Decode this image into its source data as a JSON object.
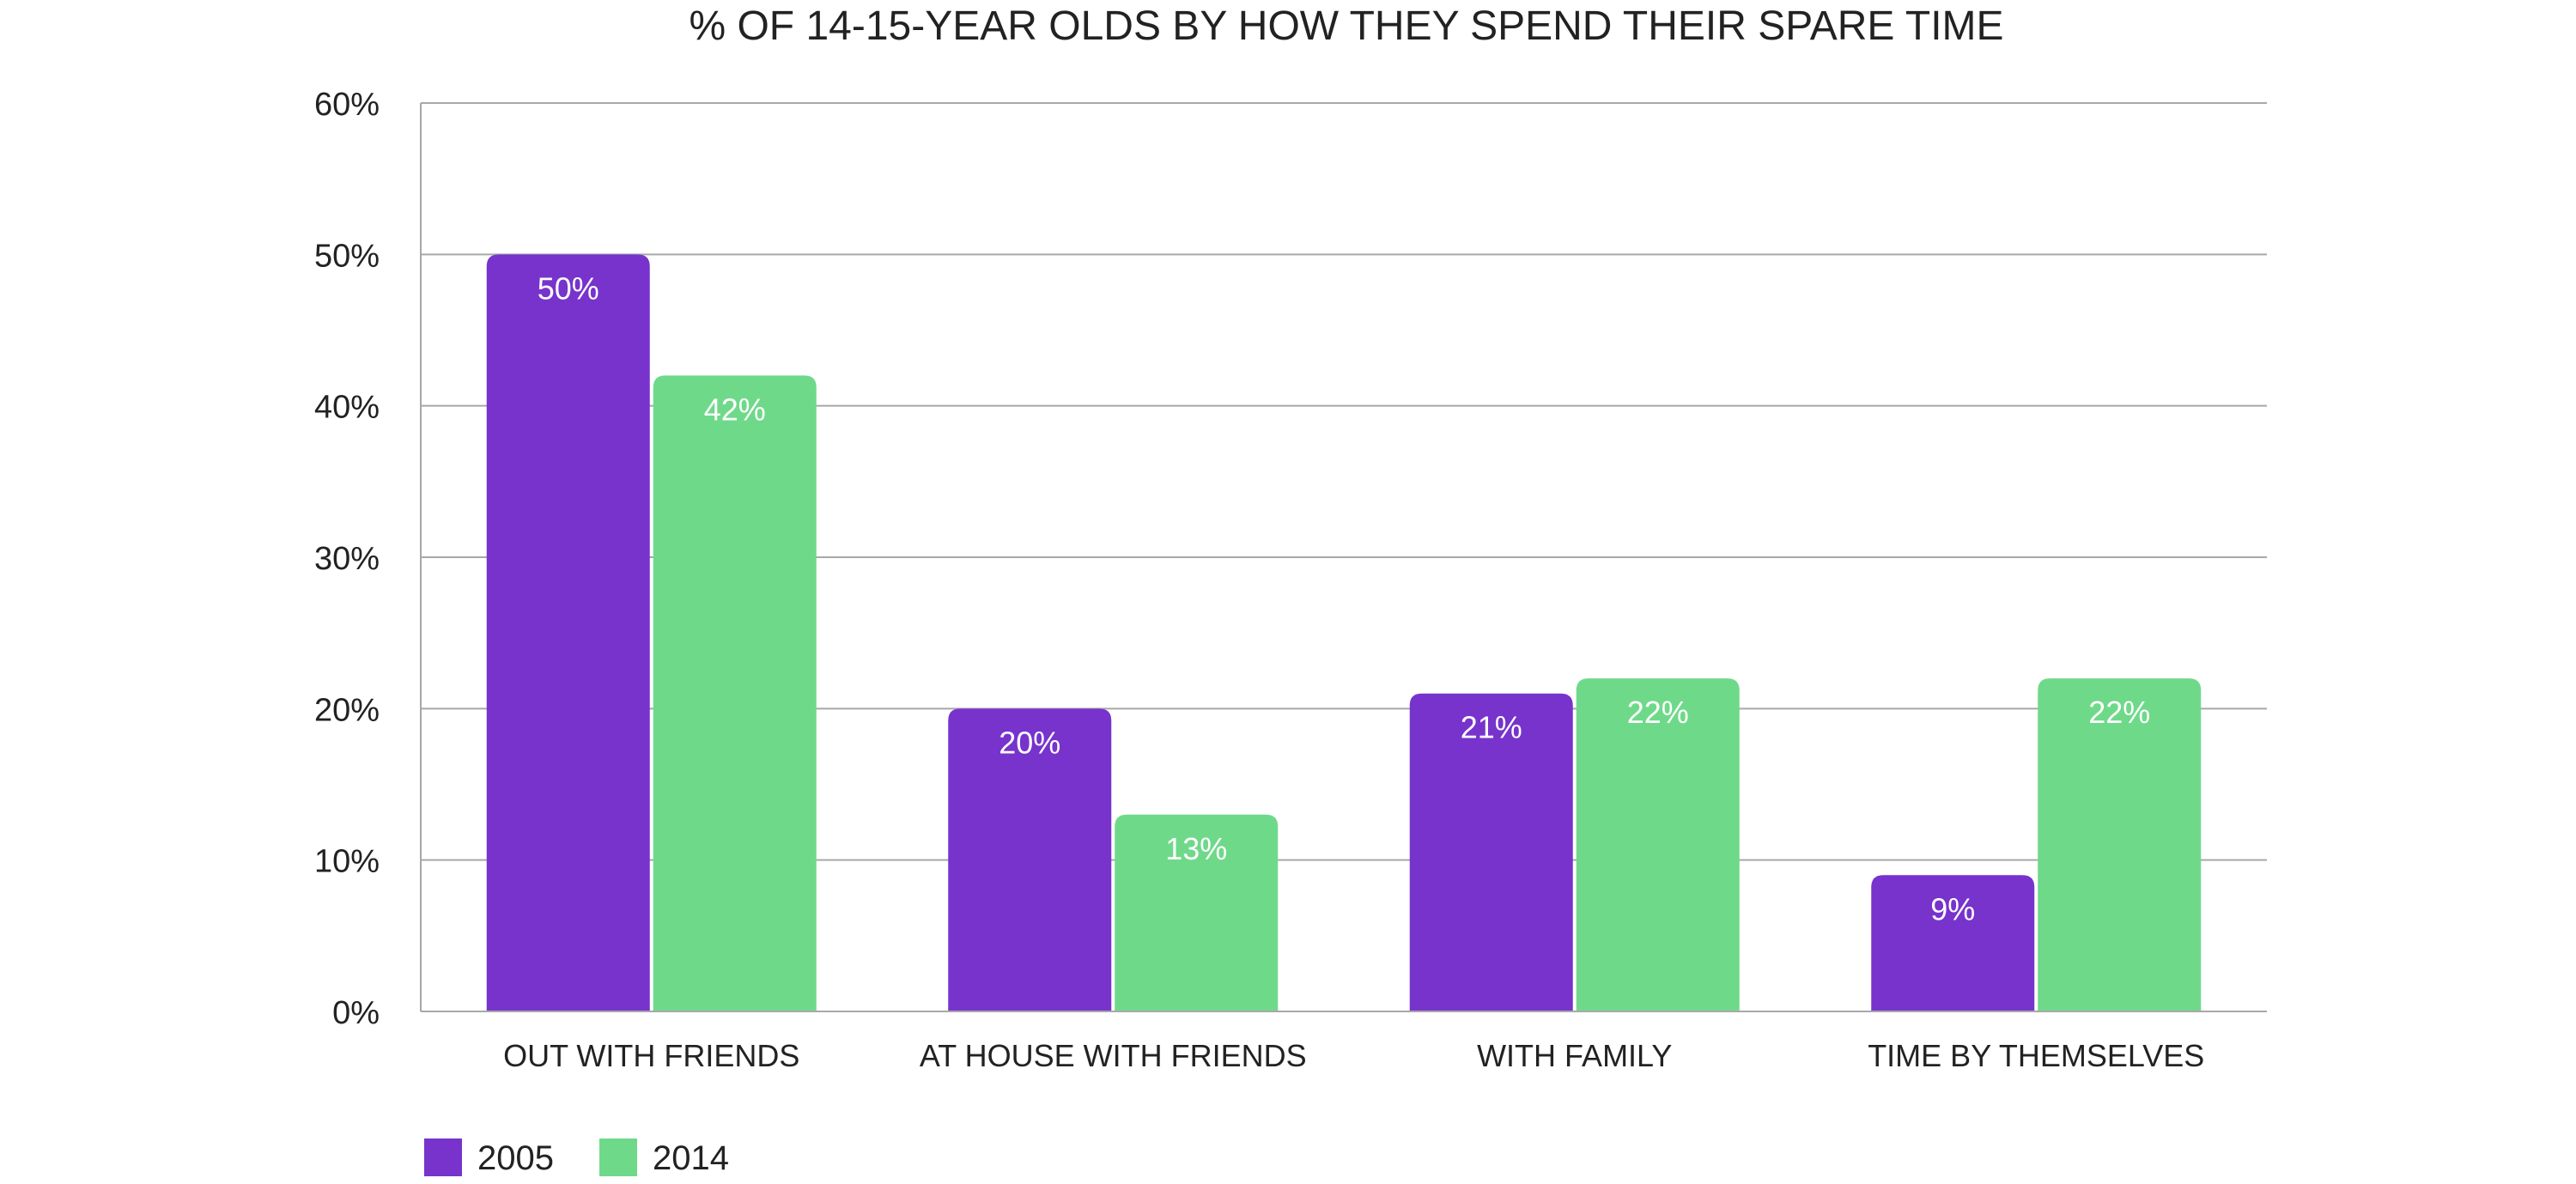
{
  "chart_data": {
    "type": "bar",
    "title": "% OF 14-15-YEAR OLDS BY HOW THEY SPEND THEIR SPARE TIME",
    "categories": [
      "OUT WITH FRIENDS",
      "AT HOUSE WITH FRIENDS",
      "WITH FAMILY",
      "TIME BY THEMSELVES"
    ],
    "series": [
      {
        "name": "2005",
        "values": [
          50,
          20,
          21,
          9
        ],
        "labels": [
          "50%",
          "20%",
          "21%",
          "9%"
        ],
        "color": "#7733CC"
      },
      {
        "name": "2014",
        "values": [
          42,
          13,
          22,
          22
        ],
        "labels": [
          "42%",
          "13%",
          "22%",
          "22%"
        ],
        "color": "#6FD98A"
      }
    ],
    "ylim": [
      0,
      60
    ],
    "yticks": [
      "0%",
      "10%",
      "20%",
      "30%",
      "40%",
      "50%",
      "60%"
    ],
    "grid": true,
    "legend_position": "bottom-left"
  }
}
